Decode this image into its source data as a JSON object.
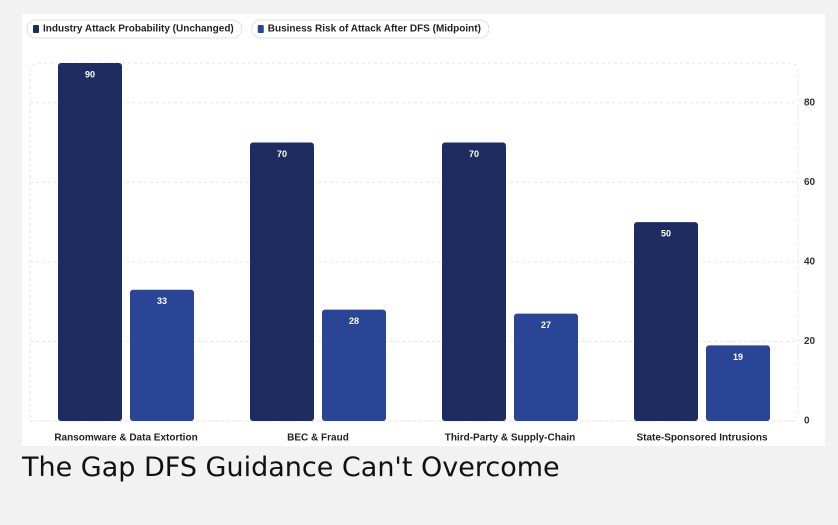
{
  "chart_data": {
    "type": "bar",
    "title": "The Gap DFS Guidance Can't Overcome",
    "categories": [
      "Ransomware & Data Extortion",
      "BEC & Fraud",
      "Third-Party & Supply-Chain",
      "State-Sponsored Intrusions"
    ],
    "series": [
      {
        "name": "Industry Attack Probability (Unchanged)",
        "color": "#1e2c5f",
        "values": [
          90,
          70,
          70,
          50
        ]
      },
      {
        "name": "Business Risk of Attack After DFS (Midpoint)",
        "color": "#2a4595",
        "values": [
          33,
          28,
          27,
          19
        ]
      }
    ],
    "ylim": [
      0,
      90
    ],
    "yticks": [
      0,
      20,
      40,
      60,
      80
    ],
    "grid": true,
    "legend": "top-left"
  }
}
